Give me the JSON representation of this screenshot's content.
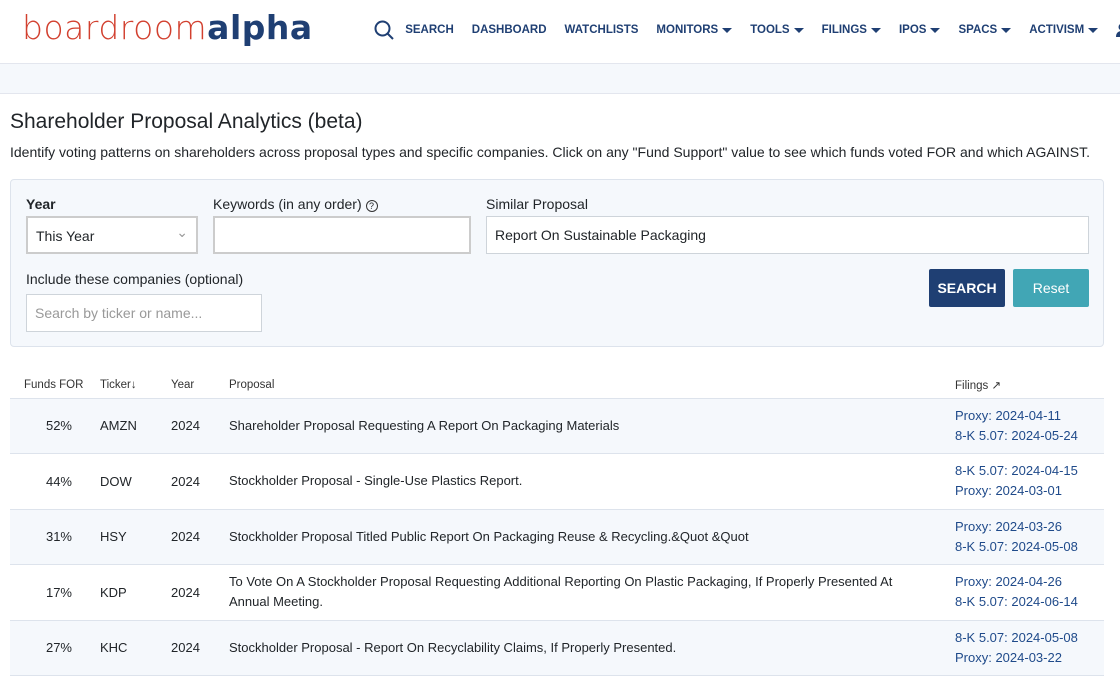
{
  "brand": {
    "part1": "boardroom",
    "part2": "alpha"
  },
  "nav": {
    "search": "SEARCH",
    "items": [
      "DASHBOARD",
      "WATCHLISTS"
    ],
    "dropdowns": [
      "MONITORS",
      "TOOLS",
      "FILINGS",
      "IPOS",
      "SPACS",
      "ACTIVISM"
    ]
  },
  "page": {
    "title": "Shareholder Proposal Analytics (beta)",
    "description": "Identify voting patterns on shareholders across proposal types and specific companies. Click on any \"Fund Support\" value to see which funds voted FOR and which AGAINST."
  },
  "form": {
    "year_label": "Year",
    "year_value": "This Year",
    "keywords_label": "Keywords (in any order)",
    "keywords_value": "",
    "similar_label": "Similar Proposal",
    "similar_value": "Report On Sustainable Packaging",
    "companies_label": "Include these companies (optional)",
    "companies_placeholder": "Search by ticker or name...",
    "search_button": "SEARCH",
    "reset_button": "Reset"
  },
  "table": {
    "headers": {
      "funds": "Funds FOR",
      "ticker": "Ticker",
      "year": "Year",
      "proposal": "Proposal",
      "filings": "Filings"
    },
    "rows": [
      {
        "funds": "52%",
        "ticker": "AMZN",
        "year": "2024",
        "proposal": "Shareholder Proposal Requesting A Report On Packaging Materials",
        "filings": [
          "Proxy: 2024-04-11",
          "8-K 5.07: 2024-05-24"
        ]
      },
      {
        "funds": "44%",
        "ticker": "DOW",
        "year": "2024",
        "proposal": "Stockholder Proposal - Single-Use Plastics Report.",
        "filings": [
          "8-K 5.07: 2024-04-15",
          "Proxy: 2024-03-01"
        ]
      },
      {
        "funds": "31%",
        "ticker": "HSY",
        "year": "2024",
        "proposal": "Stockholder Proposal Titled Public Report On Packaging Reuse & Recycling.&Quot &Quot",
        "filings": [
          "Proxy: 2024-03-26",
          "8-K 5.07: 2024-05-08"
        ]
      },
      {
        "funds": "17%",
        "ticker": "KDP",
        "year": "2024",
        "proposal": "To Vote On A Stockholder Proposal Requesting Additional Reporting On Plastic Packaging, If Properly Presented At Annual Meeting.",
        "filings": [
          "Proxy: 2024-04-26",
          "8-K 5.07: 2024-06-14"
        ]
      },
      {
        "funds": "27%",
        "ticker": "KHC",
        "year": "2024",
        "proposal": "Stockholder Proposal - Report On Recyclability Claims, If Properly Presented.",
        "filings": [
          "8-K 5.07: 2024-05-08",
          "Proxy: 2024-03-22"
        ]
      }
    ]
  }
}
